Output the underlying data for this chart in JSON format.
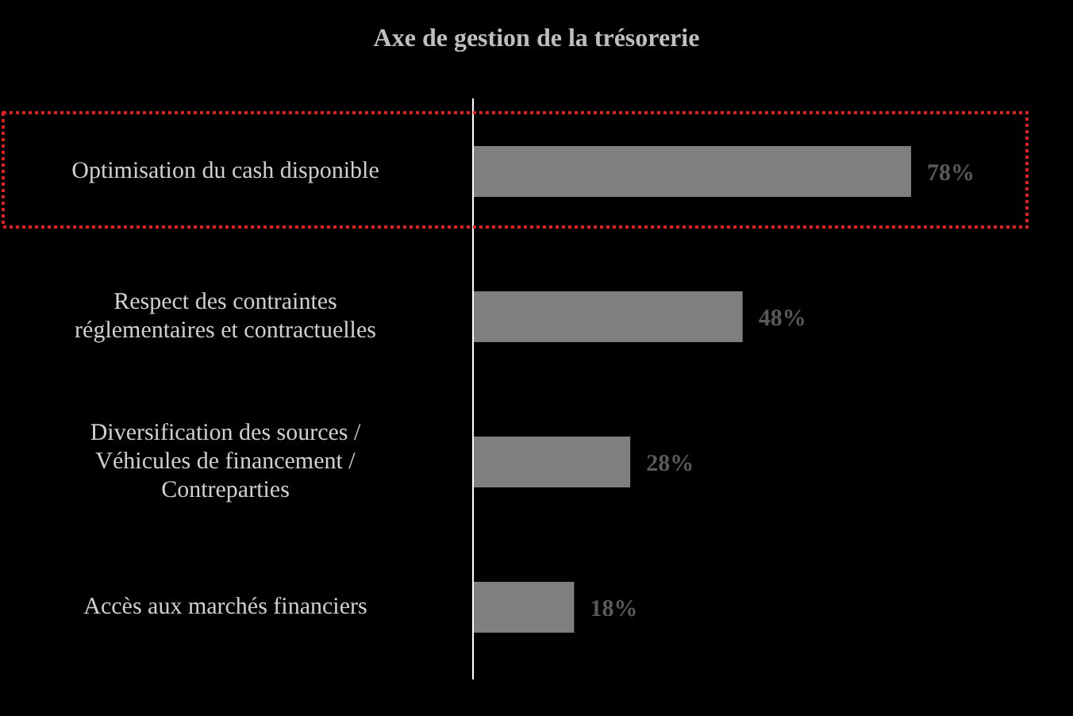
{
  "chart_data": {
    "type": "bar",
    "orientation": "horizontal",
    "title": "Axe de gestion de la trésorerie",
    "categories": [
      "Optimisation du cash disponible",
      "Respect des contraintes réglementaires et contractuelles",
      "Diversification des sources / Véhicules de financement / Contreparties",
      "Accès aux marchés financiers"
    ],
    "values": [
      78,
      48,
      28,
      18
    ],
    "value_labels": [
      "78%",
      "48%",
      "28%",
      "18%"
    ],
    "color": "#7f7f7f"
  }
}
